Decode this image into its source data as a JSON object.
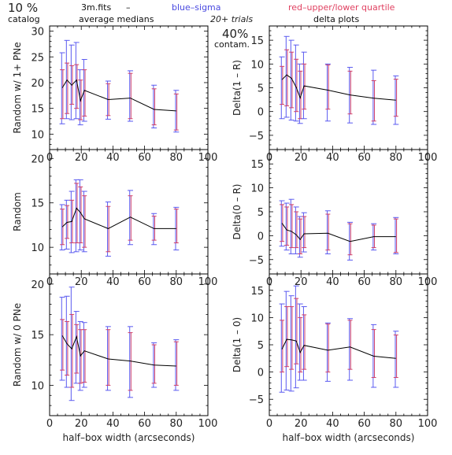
{
  "header": {
    "percent": "10 %",
    "catalog": "catalog",
    "file": "3m.fits",
    "dash": "–",
    "avg": "average medians",
    "blue": "blue–sigma",
    "red": "red–upper/lower quartile",
    "trials": "20+ trials",
    "contam_pct": "40%",
    "contam": "contam.",
    "delta": "delta plots"
  },
  "colors": {
    "line": "#000000",
    "sigma": "#5a5af0",
    "quartile": "#d0406a"
  },
  "chart_data": [
    {
      "type": "line",
      "id": "p1",
      "ylabel": "Random w/ 1+ PNe",
      "xlabel": "",
      "xlim": [
        0,
        100
      ],
      "ylim": [
        7,
        31
      ],
      "xticks": [
        "0",
        "20",
        "40",
        "60",
        "80",
        "100"
      ],
      "yticks": [
        "10",
        "15",
        "20",
        "25",
        "30"
      ],
      "x": [
        8,
        11,
        14,
        17,
        19.5,
        22,
        37,
        51,
        66,
        80
      ],
      "y": [
        19,
        20.5,
        19.5,
        20.5,
        16.5,
        18.5,
        16.7,
        17,
        14.8,
        14.5
      ],
      "sigma_low": [
        12,
        13,
        12.8,
        13,
        11.8,
        12.5,
        12.9,
        12.5,
        11.2,
        10.4
      ],
      "sigma_high": [
        25.8,
        28.2,
        27.3,
        27.8,
        22.5,
        24.5,
        20.3,
        22.3,
        19.5,
        18.5
      ],
      "q_low": [
        13,
        14,
        15.8,
        15,
        12.8,
        13.5,
        13.6,
        13,
        11.8,
        10.8
      ],
      "q_high": [
        22.5,
        23.8,
        23.3,
        23.5,
        20.5,
        22.5,
        19.8,
        21.8,
        18.8,
        17.8
      ]
    },
    {
      "type": "line",
      "id": "p2",
      "ylabel": "Delta(1 – R)",
      "xlabel": "",
      "xlim": [
        0,
        100
      ],
      "ylim": [
        -8,
        18
      ],
      "xticks": [
        "0",
        "20",
        "40",
        "60",
        "80",
        "100"
      ],
      "yticks": [
        "−5",
        "0",
        "5",
        "10",
        "15"
      ],
      "x": [
        8,
        11,
        14,
        17,
        19.5,
        22,
        37,
        51,
        66,
        80
      ],
      "y": [
        6.7,
        7.7,
        7,
        5.1,
        2.9,
        5.4,
        4.5,
        3.5,
        2.8,
        2.4
      ],
      "sigma_low": [
        -1.5,
        -1.2,
        -1.8,
        -2,
        -2.5,
        -1.5,
        -2,
        -2.4,
        -2.7,
        -2.7
      ],
      "sigma_high": [
        11.5,
        15.8,
        15,
        14,
        10,
        12.5,
        10,
        9.3,
        8.7,
        7.5
      ],
      "q_low": [
        1.5,
        1.2,
        0.8,
        0,
        -1.5,
        0.5,
        0.5,
        -0.5,
        -2,
        -1
      ],
      "q_high": [
        9.5,
        13,
        12.5,
        11,
        8.5,
        10,
        9.8,
        8.5,
        6.5,
        6.8
      ]
    },
    {
      "type": "line",
      "id": "p3",
      "ylabel": "Random",
      "xlabel": "",
      "xlim": [
        0,
        100
      ],
      "ylim": [
        7,
        21
      ],
      "xticks": [
        "0",
        "20",
        "40",
        "60",
        "80",
        "100"
      ],
      "yticks": [
        "10",
        "15",
        "20"
      ],
      "x": [
        8,
        11,
        14,
        17,
        19.5,
        22,
        37,
        51,
        66,
        80
      ],
      "y": [
        12.3,
        12.8,
        12.9,
        14.4,
        13.9,
        13.2,
        12.1,
        13.4,
        12.1,
        12.1
      ],
      "sigma_low": [
        9.7,
        9.8,
        9.4,
        9.5,
        9.7,
        9.5,
        9,
        10.3,
        10.3,
        9.7
      ],
      "sigma_high": [
        14.8,
        15.3,
        16.3,
        17.6,
        17.6,
        16.3,
        15.1,
        16.4,
        13.8,
        14.5
      ],
      "q_low": [
        10.3,
        11,
        10.5,
        10.5,
        10.5,
        10,
        9.5,
        10.8,
        10.8,
        10.5
      ],
      "q_high": [
        14.3,
        14.7,
        15.3,
        17.2,
        16.8,
        15.8,
        14.6,
        15.8,
        13.5,
        14.3
      ]
    },
    {
      "type": "line",
      "id": "p4",
      "ylabel": "Delta(0 – R)",
      "xlabel": "",
      "xlim": [
        0,
        100
      ],
      "ylim": [
        -8,
        18
      ],
      "xticks": [
        "0",
        "20",
        "40",
        "60",
        "80",
        "100"
      ],
      "yticks": [
        "−5",
        "0",
        "5",
        "10",
        "15"
      ],
      "x": [
        8,
        11,
        14,
        17,
        19.5,
        22,
        37,
        51,
        66,
        80
      ],
      "y": [
        2.6,
        1.2,
        0.9,
        0.2,
        -0.8,
        0.4,
        0.5,
        -1.2,
        -0.2,
        -0.2
      ],
      "sigma_low": [
        -2.2,
        -3,
        -3.8,
        -3.8,
        -4.5,
        -3.4,
        -3.8,
        -5.1,
        -3,
        -3.8
      ],
      "sigma_high": [
        7.3,
        6.8,
        7.6,
        6,
        4,
        4.8,
        5.2,
        2.8,
        2.5,
        3.8
      ],
      "q_low": [
        -1.2,
        -2,
        -2.5,
        -2.5,
        -3.8,
        -2.5,
        -3,
        -4,
        -2.5,
        -3.5
      ],
      "q_high": [
        6.5,
        6,
        6.5,
        5,
        3.5,
        4,
        4.5,
        2.5,
        2.2,
        3.5
      ]
    },
    {
      "type": "line",
      "id": "p5",
      "ylabel": "Random w/ 0 PNe",
      "xlabel": "half–box width (arcseconds)",
      "xlim": [
        0,
        100
      ],
      "ylim": [
        7,
        21
      ],
      "xticks": [
        "0",
        "20",
        "40",
        "60",
        "80",
        "100"
      ],
      "yticks": [
        "10",
        "15",
        "20"
      ],
      "x": [
        8,
        11,
        14,
        17,
        19.5,
        22,
        37,
        51,
        66,
        80
      ],
      "y": [
        14.9,
        14.1,
        13.6,
        14.8,
        12.9,
        13.4,
        12.6,
        12.4,
        12,
        11.9
      ],
      "sigma_low": [
        10.5,
        9.8,
        8.5,
        10.2,
        9.5,
        9.8,
        9.5,
        8.8,
        9.8,
        9.5
      ],
      "sigma_high": [
        18.7,
        18.8,
        19.7,
        17.3,
        16.3,
        16.2,
        15.8,
        15.8,
        14.2,
        14.5
      ],
      "q_low": [
        11.5,
        11,
        9.8,
        11.2,
        10.2,
        10.3,
        10,
        9.5,
        10.2,
        10
      ],
      "q_high": [
        16.5,
        16.3,
        17,
        16,
        15.5,
        15.5,
        15.5,
        15.2,
        14,
        14.3
      ]
    },
    {
      "type": "line",
      "id": "p6",
      "ylabel": "Delta(1 – 0)",
      "xlabel": "half–box width (arcseconds)",
      "xlim": [
        0,
        100
      ],
      "ylim": [
        -8,
        18
      ],
      "xticks": [
        "0",
        "20",
        "40",
        "60",
        "80",
        "100"
      ],
      "yticks": [
        "−5",
        "0",
        "5",
        "10",
        "15"
      ],
      "x": [
        8,
        11,
        14,
        17,
        19.5,
        22,
        37,
        51,
        66,
        80
      ],
      "y": [
        4.2,
        6,
        5.9,
        5.7,
        3.6,
        4.9,
        4,
        4.6,
        2.9,
        2.5
      ],
      "sigma_low": [
        -3.7,
        -3.3,
        -3.5,
        -2.9,
        -1.5,
        -1.5,
        -1.7,
        -1.5,
        -2.8,
        -2.8
      ],
      "sigma_high": [
        12.5,
        14.8,
        14,
        15.8,
        12.5,
        12,
        9,
        9.8,
        8.7,
        7.5
      ],
      "q_low": [
        0,
        1,
        0.5,
        1.5,
        0,
        0.5,
        0,
        0.5,
        -1,
        -1
      ],
      "q_high": [
        9.5,
        12,
        12,
        13.5,
        10,
        10.5,
        8.8,
        9.5,
        7.8,
        6.8
      ]
    }
  ]
}
